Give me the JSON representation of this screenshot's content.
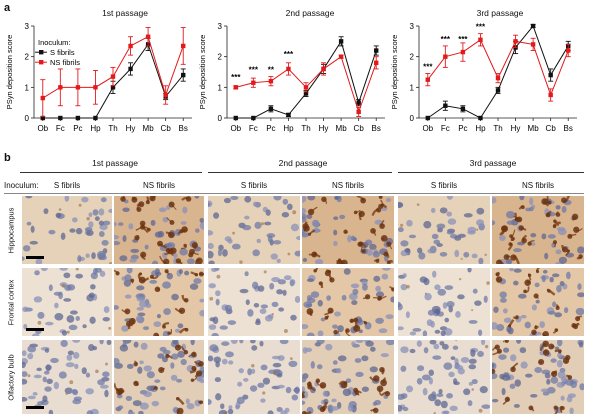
{
  "panel_a_letter": "a",
  "panel_b_letter": "b",
  "colors": {
    "s": "#111111",
    "ns": "#e31a1c"
  },
  "legend": {
    "title": "Inoculum:",
    "s": "S fibrils",
    "ns": "NS fibrils"
  },
  "chart_data": [
    {
      "type": "line",
      "title": "1st passage",
      "ylabel": "PSyn deposition score",
      "ylim": [
        0,
        3
      ],
      "yticks": [
        "0",
        "1",
        "2",
        "3"
      ],
      "categories": [
        "Ob",
        "Fc",
        "Pc",
        "Hp",
        "Th",
        "Hy",
        "Mb",
        "Cb",
        "Bs"
      ],
      "series": [
        {
          "name": "S fibrils",
          "values": [
            0,
            0,
            0,
            0,
            1.0,
            1.6,
            2.4,
            0.7,
            1.4
          ],
          "errors": [
            0,
            0,
            0,
            0,
            0.2,
            0.2,
            0.2,
            0.1,
            0.2
          ]
        },
        {
          "name": "NS fibrils",
          "values": [
            0.65,
            1.0,
            1.0,
            1.0,
            1.35,
            2.35,
            2.65,
            0.75,
            2.35
          ],
          "errors": [
            0.6,
            0.6,
            0.6,
            0.55,
            0.3,
            0.3,
            0.3,
            0.3,
            0.6
          ]
        }
      ],
      "annotations": []
    },
    {
      "type": "line",
      "title": "2nd passage",
      "ylabel": "PSyn deposition score",
      "ylim": [
        0,
        3
      ],
      "yticks": [
        "0",
        "1",
        "2",
        "3"
      ],
      "categories": [
        "Ob",
        "Fc",
        "Pc",
        "Hp",
        "Th",
        "Hy",
        "Mb",
        "Cb",
        "Bs"
      ],
      "series": [
        {
          "name": "S fibrils",
          "values": [
            0,
            0,
            0.3,
            0.1,
            0.8,
            1.6,
            2.5,
            0.5,
            2.2
          ],
          "errors": [
            0,
            0,
            0.1,
            0.05,
            0.1,
            0.15,
            0.15,
            0.1,
            0.15
          ]
        },
        {
          "name": "NS fibrils",
          "values": [
            1.0,
            1.15,
            1.2,
            1.6,
            1.0,
            1.6,
            2.0,
            0.2,
            1.8
          ],
          "errors": [
            0.05,
            0.15,
            0.15,
            0.2,
            0.15,
            0.2,
            0.05,
            0.15,
            0.2
          ]
        }
      ],
      "annotations": [
        {
          "category": "Ob",
          "text": "***",
          "y": 1.3
        },
        {
          "category": "Fc",
          "text": "***",
          "y": 1.55
        },
        {
          "category": "Pc",
          "text": "**",
          "y": 1.55
        },
        {
          "category": "Hp",
          "text": "***",
          "y": 2.05
        }
      ]
    },
    {
      "type": "line",
      "title": "3rd passage",
      "ylabel": "PSyn deposition score",
      "ylim": [
        0,
        3
      ],
      "yticks": [
        "0",
        "1",
        "2",
        "3"
      ],
      "categories": [
        "Ob",
        "Fc",
        "Pc",
        "Hp",
        "Th",
        "Hy",
        "Mb",
        "Cb",
        "Bs"
      ],
      "series": [
        {
          "name": "S fibrils",
          "values": [
            0,
            0.4,
            0.3,
            0,
            0.9,
            2.3,
            3.0,
            1.4,
            2.35
          ],
          "errors": [
            0,
            0.15,
            0.1,
            0,
            0.1,
            0.2,
            0.05,
            0.2,
            0.15
          ]
        },
        {
          "name": "NS fibrils",
          "values": [
            1.25,
            2.0,
            2.15,
            2.55,
            1.3,
            2.5,
            2.4,
            0.75,
            2.2
          ],
          "errors": [
            0.2,
            0.35,
            0.3,
            0.2,
            0.15,
            0.2,
            0.2,
            0.2,
            0.2
          ]
        }
      ],
      "annotations": [
        {
          "category": "Ob",
          "text": "***",
          "y": 1.65
        },
        {
          "category": "Fc",
          "text": "***",
          "y": 2.55
        },
        {
          "category": "Pc",
          "text": "***",
          "y": 2.55
        },
        {
          "category": "Hp",
          "text": "***",
          "y": 2.95
        }
      ]
    }
  ],
  "panel_b": {
    "inoculum_label": "Inoculum:",
    "sections": [
      "1st passage",
      "2nd passage",
      "3rd passage"
    ],
    "columns": [
      "S fibrils",
      "NS fibrils",
      "S fibrils",
      "NS fibrils",
      "S fibrils",
      "NS fibrils"
    ],
    "rows": [
      "Hippocampus",
      "Frontal cortex",
      "Olfactory bulb"
    ],
    "image_description": "immunohistochemistry micrographs (brown stain on blue nuclei)"
  }
}
